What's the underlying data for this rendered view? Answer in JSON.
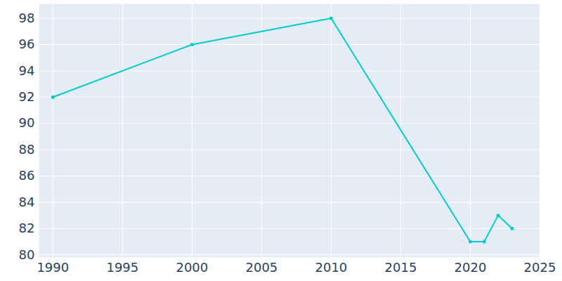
{
  "chart_data": {
    "type": "line",
    "x": [
      1990,
      2000,
      2010,
      2020,
      2021,
      2022,
      2023
    ],
    "values": [
      92,
      96,
      98,
      81,
      81,
      83,
      82
    ],
    "color": "#00cccc",
    "marker": "circle",
    "xlim": [
      1989,
      2025
    ],
    "xticks": [
      1990,
      1995,
      2000,
      2005,
      2010,
      2015,
      2020,
      2025
    ],
    "ylim": [
      79.8,
      99.1
    ],
    "yticks": [
      80,
      82,
      84,
      86,
      88,
      90,
      92,
      94,
      96,
      98
    ],
    "grid": true
  }
}
